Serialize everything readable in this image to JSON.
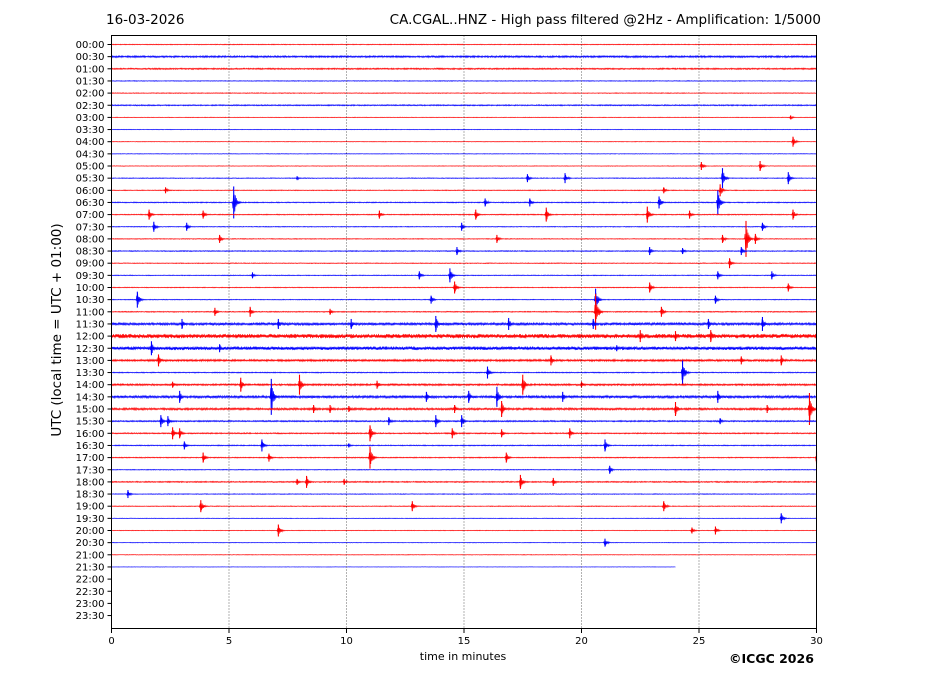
{
  "header": {
    "date": "16-03-2026",
    "title": "CA.CGAL..HNZ - High pass filtered @2Hz - Amplification: 1/5000"
  },
  "chart_data": {
    "type": "line",
    "title": "CA.CGAL..HNZ - High pass filtered @2Hz - Amplification: 1/5000",
    "xlabel": "time in minutes",
    "ylabel": "UTC (local time = UTC + 01:00)",
    "xlim": [
      0,
      30
    ],
    "xticks": [
      0,
      5,
      10,
      15,
      20,
      25,
      30
    ],
    "grid": "vertical dotted at 5-minute intervals",
    "row_labels": [
      "00:00",
      "00:30",
      "01:00",
      "01:30",
      "02:00",
      "02:30",
      "03:00",
      "03:30",
      "04:00",
      "04:30",
      "05:00",
      "05:30",
      "06:00",
      "06:30",
      "07:00",
      "07:30",
      "08:00",
      "08:30",
      "09:00",
      "09:30",
      "10:00",
      "10:30",
      "11:00",
      "11:30",
      "12:00",
      "12:30",
      "13:00",
      "13:30",
      "14:00",
      "14:30",
      "15:00",
      "15:30",
      "16:00",
      "16:30",
      "17:00",
      "17:30",
      "18:00",
      "18:30",
      "19:00",
      "19:30",
      "20:00",
      "20:30",
      "21:00",
      "21:30",
      "22:00",
      "22:30",
      "23:00",
      "23:30"
    ],
    "trace_colors": [
      "#ff0000",
      "#0000ff"
    ],
    "data_end": {
      "row": "21:30",
      "minute": 24
    },
    "noise_level": [
      0.4,
      0.9,
      0.7,
      0.4,
      0.4,
      0.6,
      0.3,
      0.3,
      0.3,
      0.3,
      0.3,
      0.4,
      0.4,
      0.5,
      0.5,
      0.4,
      0.4,
      0.5,
      0.4,
      0.4,
      0.4,
      0.4,
      0.5,
      1.2,
      2.2,
      1.8,
      1.0,
      0.5,
      0.9,
      1.2,
      1.0,
      0.7,
      0.6,
      0.5,
      0.5,
      0.4,
      0.6,
      0.4,
      0.4,
      0.3,
      0.3,
      0.3,
      0.3,
      0.2,
      0,
      0,
      0,
      0
    ],
    "events": [
      {
        "row": "03:00",
        "minute": 28.9,
        "amp": 2
      },
      {
        "row": "04:00",
        "minute": 29.0,
        "amp": 5
      },
      {
        "row": "05:00",
        "minute": 25.1,
        "amp": 4
      },
      {
        "row": "05:00",
        "minute": 27.6,
        "amp": 5
      },
      {
        "row": "05:30",
        "minute": 7.9,
        "amp": 2
      },
      {
        "row": "05:30",
        "minute": 17.7,
        "amp": 4
      },
      {
        "row": "05:30",
        "minute": 19.3,
        "amp": 5
      },
      {
        "row": "05:30",
        "minute": 26.0,
        "amp": 10
      },
      {
        "row": "05:30",
        "minute": 28.8,
        "amp": 6
      },
      {
        "row": "06:00",
        "minute": 2.3,
        "amp": 3
      },
      {
        "row": "06:00",
        "minute": 23.5,
        "amp": 3
      },
      {
        "row": "06:00",
        "minute": 25.9,
        "amp": 6
      },
      {
        "row": "06:30",
        "minute": 5.2,
        "amp": 16
      },
      {
        "row": "06:30",
        "minute": 15.9,
        "amp": 4
      },
      {
        "row": "06:30",
        "minute": 17.8,
        "amp": 4
      },
      {
        "row": "06:30",
        "minute": 23.3,
        "amp": 6
      },
      {
        "row": "06:30",
        "minute": 25.8,
        "amp": 12
      },
      {
        "row": "07:00",
        "minute": 1.6,
        "amp": 5
      },
      {
        "row": "07:00",
        "minute": 3.9,
        "amp": 4
      },
      {
        "row": "07:00",
        "minute": 11.4,
        "amp": 4
      },
      {
        "row": "07:00",
        "minute": 15.5,
        "amp": 5
      },
      {
        "row": "07:00",
        "minute": 18.5,
        "amp": 7
      },
      {
        "row": "07:00",
        "minute": 22.8,
        "amp": 8
      },
      {
        "row": "07:00",
        "minute": 24.6,
        "amp": 4
      },
      {
        "row": "07:00",
        "minute": 29.0,
        "amp": 5
      },
      {
        "row": "07:30",
        "minute": 1.8,
        "amp": 5
      },
      {
        "row": "07:30",
        "minute": 3.2,
        "amp": 4
      },
      {
        "row": "07:30",
        "minute": 14.9,
        "amp": 4
      },
      {
        "row": "07:30",
        "minute": 27.7,
        "amp": 4
      },
      {
        "row": "08:00",
        "minute": 4.6,
        "amp": 4
      },
      {
        "row": "08:00",
        "minute": 16.4,
        "amp": 4
      },
      {
        "row": "08:00",
        "minute": 26.0,
        "amp": 4
      },
      {
        "row": "08:00",
        "minute": 27.0,
        "amp": 18
      },
      {
        "row": "08:00",
        "minute": 27.4,
        "amp": 5
      },
      {
        "row": "08:30",
        "minute": 14.7,
        "amp": 4
      },
      {
        "row": "08:30",
        "minute": 22.9,
        "amp": 4
      },
      {
        "row": "08:30",
        "minute": 24.3,
        "amp": 3
      },
      {
        "row": "08:30",
        "minute": 26.8,
        "amp": 4
      },
      {
        "row": "09:00",
        "minute": 26.3,
        "amp": 5
      },
      {
        "row": "09:30",
        "minute": 6.0,
        "amp": 3
      },
      {
        "row": "09:30",
        "minute": 13.1,
        "amp": 4
      },
      {
        "row": "09:30",
        "minute": 14.4,
        "amp": 7
      },
      {
        "row": "09:30",
        "minute": 25.8,
        "amp": 4
      },
      {
        "row": "09:30",
        "minute": 28.1,
        "amp": 4
      },
      {
        "row": "10:00",
        "minute": 14.6,
        "amp": 6
      },
      {
        "row": "10:00",
        "minute": 22.9,
        "amp": 5
      },
      {
        "row": "10:00",
        "minute": 28.8,
        "amp": 4
      },
      {
        "row": "10:30",
        "minute": 1.1,
        "amp": 8
      },
      {
        "row": "10:30",
        "minute": 13.6,
        "amp": 4
      },
      {
        "row": "10:30",
        "minute": 20.6,
        "amp": 11
      },
      {
        "row": "10:30",
        "minute": 25.7,
        "amp": 4
      },
      {
        "row": "11:00",
        "minute": 4.4,
        "amp": 4
      },
      {
        "row": "11:00",
        "minute": 5.9,
        "amp": 5
      },
      {
        "row": "11:00",
        "minute": 9.3,
        "amp": 3
      },
      {
        "row": "11:00",
        "minute": 20.6,
        "amp": 18
      },
      {
        "row": "11:00",
        "minute": 23.4,
        "amp": 5
      },
      {
        "row": "11:30",
        "minute": 3.0,
        "amp": 5
      },
      {
        "row": "11:30",
        "minute": 7.1,
        "amp": 5
      },
      {
        "row": "11:30",
        "minute": 10.2,
        "amp": 5
      },
      {
        "row": "11:30",
        "minute": 13.8,
        "amp": 8
      },
      {
        "row": "11:30",
        "minute": 16.9,
        "amp": 6
      },
      {
        "row": "11:30",
        "minute": 20.5,
        "amp": 5
      },
      {
        "row": "11:30",
        "minute": 25.4,
        "amp": 5
      },
      {
        "row": "11:30",
        "minute": 27.7,
        "amp": 7
      },
      {
        "row": "12:00",
        "minute": 22.5,
        "amp": 6
      },
      {
        "row": "12:00",
        "minute": 24.0,
        "amp": 5
      },
      {
        "row": "12:00",
        "minute": 25.5,
        "amp": 6
      },
      {
        "row": "12:30",
        "minute": 1.7,
        "amp": 7
      },
      {
        "row": "12:30",
        "minute": 4.6,
        "amp": 4
      },
      {
        "row": "12:30",
        "minute": 21.5,
        "amp": 3
      },
      {
        "row": "13:00",
        "minute": 2.0,
        "amp": 6
      },
      {
        "row": "13:00",
        "minute": 18.7,
        "amp": 5
      },
      {
        "row": "13:00",
        "minute": 26.8,
        "amp": 4
      },
      {
        "row": "13:00",
        "minute": 28.5,
        "amp": 5
      },
      {
        "row": "13:30",
        "minute": 16.0,
        "amp": 6
      },
      {
        "row": "13:30",
        "minute": 24.3,
        "amp": 12
      },
      {
        "row": "14:00",
        "minute": 2.6,
        "amp": 3
      },
      {
        "row": "14:00",
        "minute": 5.5,
        "amp": 7
      },
      {
        "row": "14:00",
        "minute": 8.0,
        "amp": 10
      },
      {
        "row": "14:00",
        "minute": 11.3,
        "amp": 4
      },
      {
        "row": "14:00",
        "minute": 17.5,
        "amp": 10
      },
      {
        "row": "14:00",
        "minute": 20.0,
        "amp": 3
      },
      {
        "row": "14:30",
        "minute": 2.9,
        "amp": 6
      },
      {
        "row": "14:30",
        "minute": 6.8,
        "amp": 18
      },
      {
        "row": "14:30",
        "minute": 13.4,
        "amp": 5
      },
      {
        "row": "14:30",
        "minute": 15.2,
        "amp": 6
      },
      {
        "row": "14:30",
        "minute": 16.4,
        "amp": 10
      },
      {
        "row": "14:30",
        "minute": 19.2,
        "amp": 5
      },
      {
        "row": "14:30",
        "minute": 25.8,
        "amp": 6
      },
      {
        "row": "15:00",
        "minute": 8.6,
        "amp": 4
      },
      {
        "row": "15:00",
        "minute": 9.3,
        "amp": 4
      },
      {
        "row": "15:00",
        "minute": 10.1,
        "amp": 3
      },
      {
        "row": "15:00",
        "minute": 14.6,
        "amp": 4
      },
      {
        "row": "15:00",
        "minute": 16.6,
        "amp": 8
      },
      {
        "row": "15:00",
        "minute": 24.0,
        "amp": 7
      },
      {
        "row": "15:00",
        "minute": 27.9,
        "amp": 4
      },
      {
        "row": "15:00",
        "minute": 29.7,
        "amp": 16
      },
      {
        "row": "15:30",
        "minute": 2.1,
        "amp": 6
      },
      {
        "row": "15:30",
        "minute": 2.4,
        "amp": 5
      },
      {
        "row": "15:30",
        "minute": 11.8,
        "amp": 4
      },
      {
        "row": "15:30",
        "minute": 13.8,
        "amp": 6
      },
      {
        "row": "15:30",
        "minute": 14.9,
        "amp": 6
      },
      {
        "row": "15:30",
        "minute": 25.9,
        "amp": 3
      },
      {
        "row": "16:00",
        "minute": 2.6,
        "amp": 6
      },
      {
        "row": "16:00",
        "minute": 2.9,
        "amp": 5
      },
      {
        "row": "16:00",
        "minute": 11.0,
        "amp": 8
      },
      {
        "row": "16:00",
        "minute": 14.5,
        "amp": 5
      },
      {
        "row": "16:00",
        "minute": 16.6,
        "amp": 4
      },
      {
        "row": "16:00",
        "minute": 19.5,
        "amp": 5
      },
      {
        "row": "16:30",
        "minute": 3.1,
        "amp": 4
      },
      {
        "row": "16:30",
        "minute": 6.4,
        "amp": 6
      },
      {
        "row": "16:30",
        "minute": 10.1,
        "amp": 2
      },
      {
        "row": "16:30",
        "minute": 21.0,
        "amp": 6
      },
      {
        "row": "17:00",
        "minute": 3.9,
        "amp": 5
      },
      {
        "row": "17:00",
        "minute": 6.7,
        "amp": 4
      },
      {
        "row": "17:00",
        "minute": 11.0,
        "amp": 11
      },
      {
        "row": "17:00",
        "minute": 16.8,
        "amp": 5
      },
      {
        "row": "17:00",
        "minute": 30.0,
        "amp": 6
      },
      {
        "row": "17:30",
        "minute": 21.2,
        "amp": 4
      },
      {
        "row": "18:00",
        "minute": 7.9,
        "amp": 3
      },
      {
        "row": "18:00",
        "minute": 8.3,
        "amp": 6
      },
      {
        "row": "18:00",
        "minute": 9.9,
        "amp": 3
      },
      {
        "row": "18:00",
        "minute": 17.4,
        "amp": 7
      },
      {
        "row": "18:00",
        "minute": 18.8,
        "amp": 4
      },
      {
        "row": "18:30",
        "minute": 0.7,
        "amp": 4
      },
      {
        "row": "19:00",
        "minute": 3.8,
        "amp": 6
      },
      {
        "row": "19:00",
        "minute": 12.8,
        "amp": 5
      },
      {
        "row": "19:00",
        "minute": 23.5,
        "amp": 5
      },
      {
        "row": "19:30",
        "minute": 28.5,
        "amp": 5
      },
      {
        "row": "20:00",
        "minute": 7.1,
        "amp": 6
      },
      {
        "row": "20:00",
        "minute": 24.7,
        "amp": 3
      },
      {
        "row": "20:00",
        "minute": 25.7,
        "amp": 4
      },
      {
        "row": "20:30",
        "minute": 21.0,
        "amp": 4
      }
    ]
  },
  "copyright": "©ICGC 2026"
}
